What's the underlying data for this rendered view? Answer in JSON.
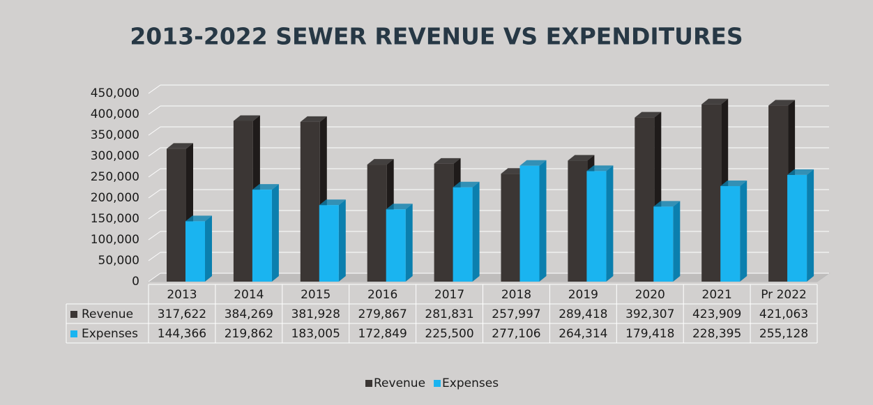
{
  "chart_data": {
    "type": "bar3d",
    "title": "2013-2022 SEWER REVENUE VS EXPENDITURES",
    "categories": [
      "2013",
      "2014",
      "2015",
      "2016",
      "2017",
      "2018",
      "2019",
      "2020",
      "2021",
      "Pr 2022"
    ],
    "series": [
      {
        "name": "Revenue",
        "color": "#3b3634",
        "side": "#1f1b1a",
        "values": [
          317622,
          384269,
          381928,
          279867,
          281831,
          257997,
          289418,
          392307,
          423909,
          421063
        ],
        "value_labels": [
          "317,622",
          "384,269",
          "381,928",
          "279,867",
          "281,831",
          "257,997",
          "289,418",
          "392,307",
          "423,909",
          "421,063"
        ]
      },
      {
        "name": "Expenses",
        "color": "#1ab4f0",
        "side": "#0b7fae",
        "values": [
          144366,
          219862,
          183005,
          172849,
          225500,
          277106,
          264314,
          179418,
          228395,
          255128
        ],
        "value_labels": [
          "144,366",
          "219,862",
          "183,005",
          "172,849",
          "225,500",
          "277,106",
          "264,314",
          "179,418",
          "228,395",
          "255,128"
        ]
      }
    ],
    "ylim": [
      0,
      450000
    ],
    "yticks": [
      0,
      {
        "value": 50000,
        "label": "50,000"
      },
      {
        "value": 100000,
        "label": "100,000"
      },
      {
        "value": 150000,
        "label": "150,000"
      },
      {
        "value": 200000,
        "label": "200,000"
      },
      {
        "value": 250000,
        "label": "250,000"
      },
      {
        "value": 300000,
        "label": "300,000"
      },
      {
        "value": 350000,
        "label": "350,000"
      },
      {
        "value": 400000,
        "label": "400,000"
      },
      {
        "value": 450000,
        "label": "450,000"
      }
    ],
    "grid": true,
    "legend": "bottom",
    "data_table": true
  }
}
